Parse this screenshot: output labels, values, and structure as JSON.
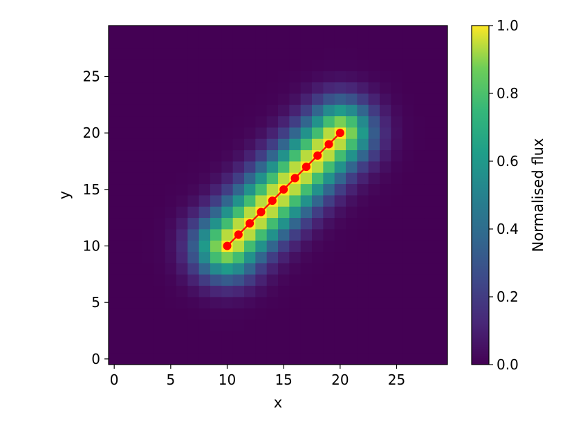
{
  "chart_data": {
    "type": "heatmap",
    "title": "",
    "xlabel": "x",
    "ylabel": "y",
    "xlim": [
      -0.5,
      29.5
    ],
    "ylim": [
      -0.5,
      29.5
    ],
    "x_ticks": [
      "0",
      "5",
      "10",
      "15",
      "20",
      "25"
    ],
    "y_ticks": [
      "0",
      "5",
      "10",
      "15",
      "20",
      "25"
    ],
    "grid": false,
    "heatmap": {
      "grid_size": [
        30,
        30
      ],
      "colormap": "viridis",
      "description_values": {
        "ridge_start": [
          10,
          10
        ],
        "ridge_end": [
          20,
          20
        ],
        "ridge_value": 1.0,
        "perpendicular_sigma_px": 2.0,
        "endcap_sigma_px": 2.0
      }
    },
    "colorbar": {
      "label": "Normalised flux",
      "ticks": [
        "0.0",
        "0.2",
        "0.4",
        "0.6",
        "0.8",
        "1.0"
      ],
      "range": [
        0.0,
        1.0
      ]
    },
    "series": [
      {
        "type": "line",
        "color": "#ff0000",
        "marker": "circle",
        "x": [
          10,
          11,
          12,
          13,
          14,
          15,
          16,
          17,
          18,
          19,
          20
        ],
        "y": [
          10,
          11,
          12,
          13,
          14,
          15,
          16,
          17,
          18,
          19,
          20
        ]
      }
    ]
  }
}
